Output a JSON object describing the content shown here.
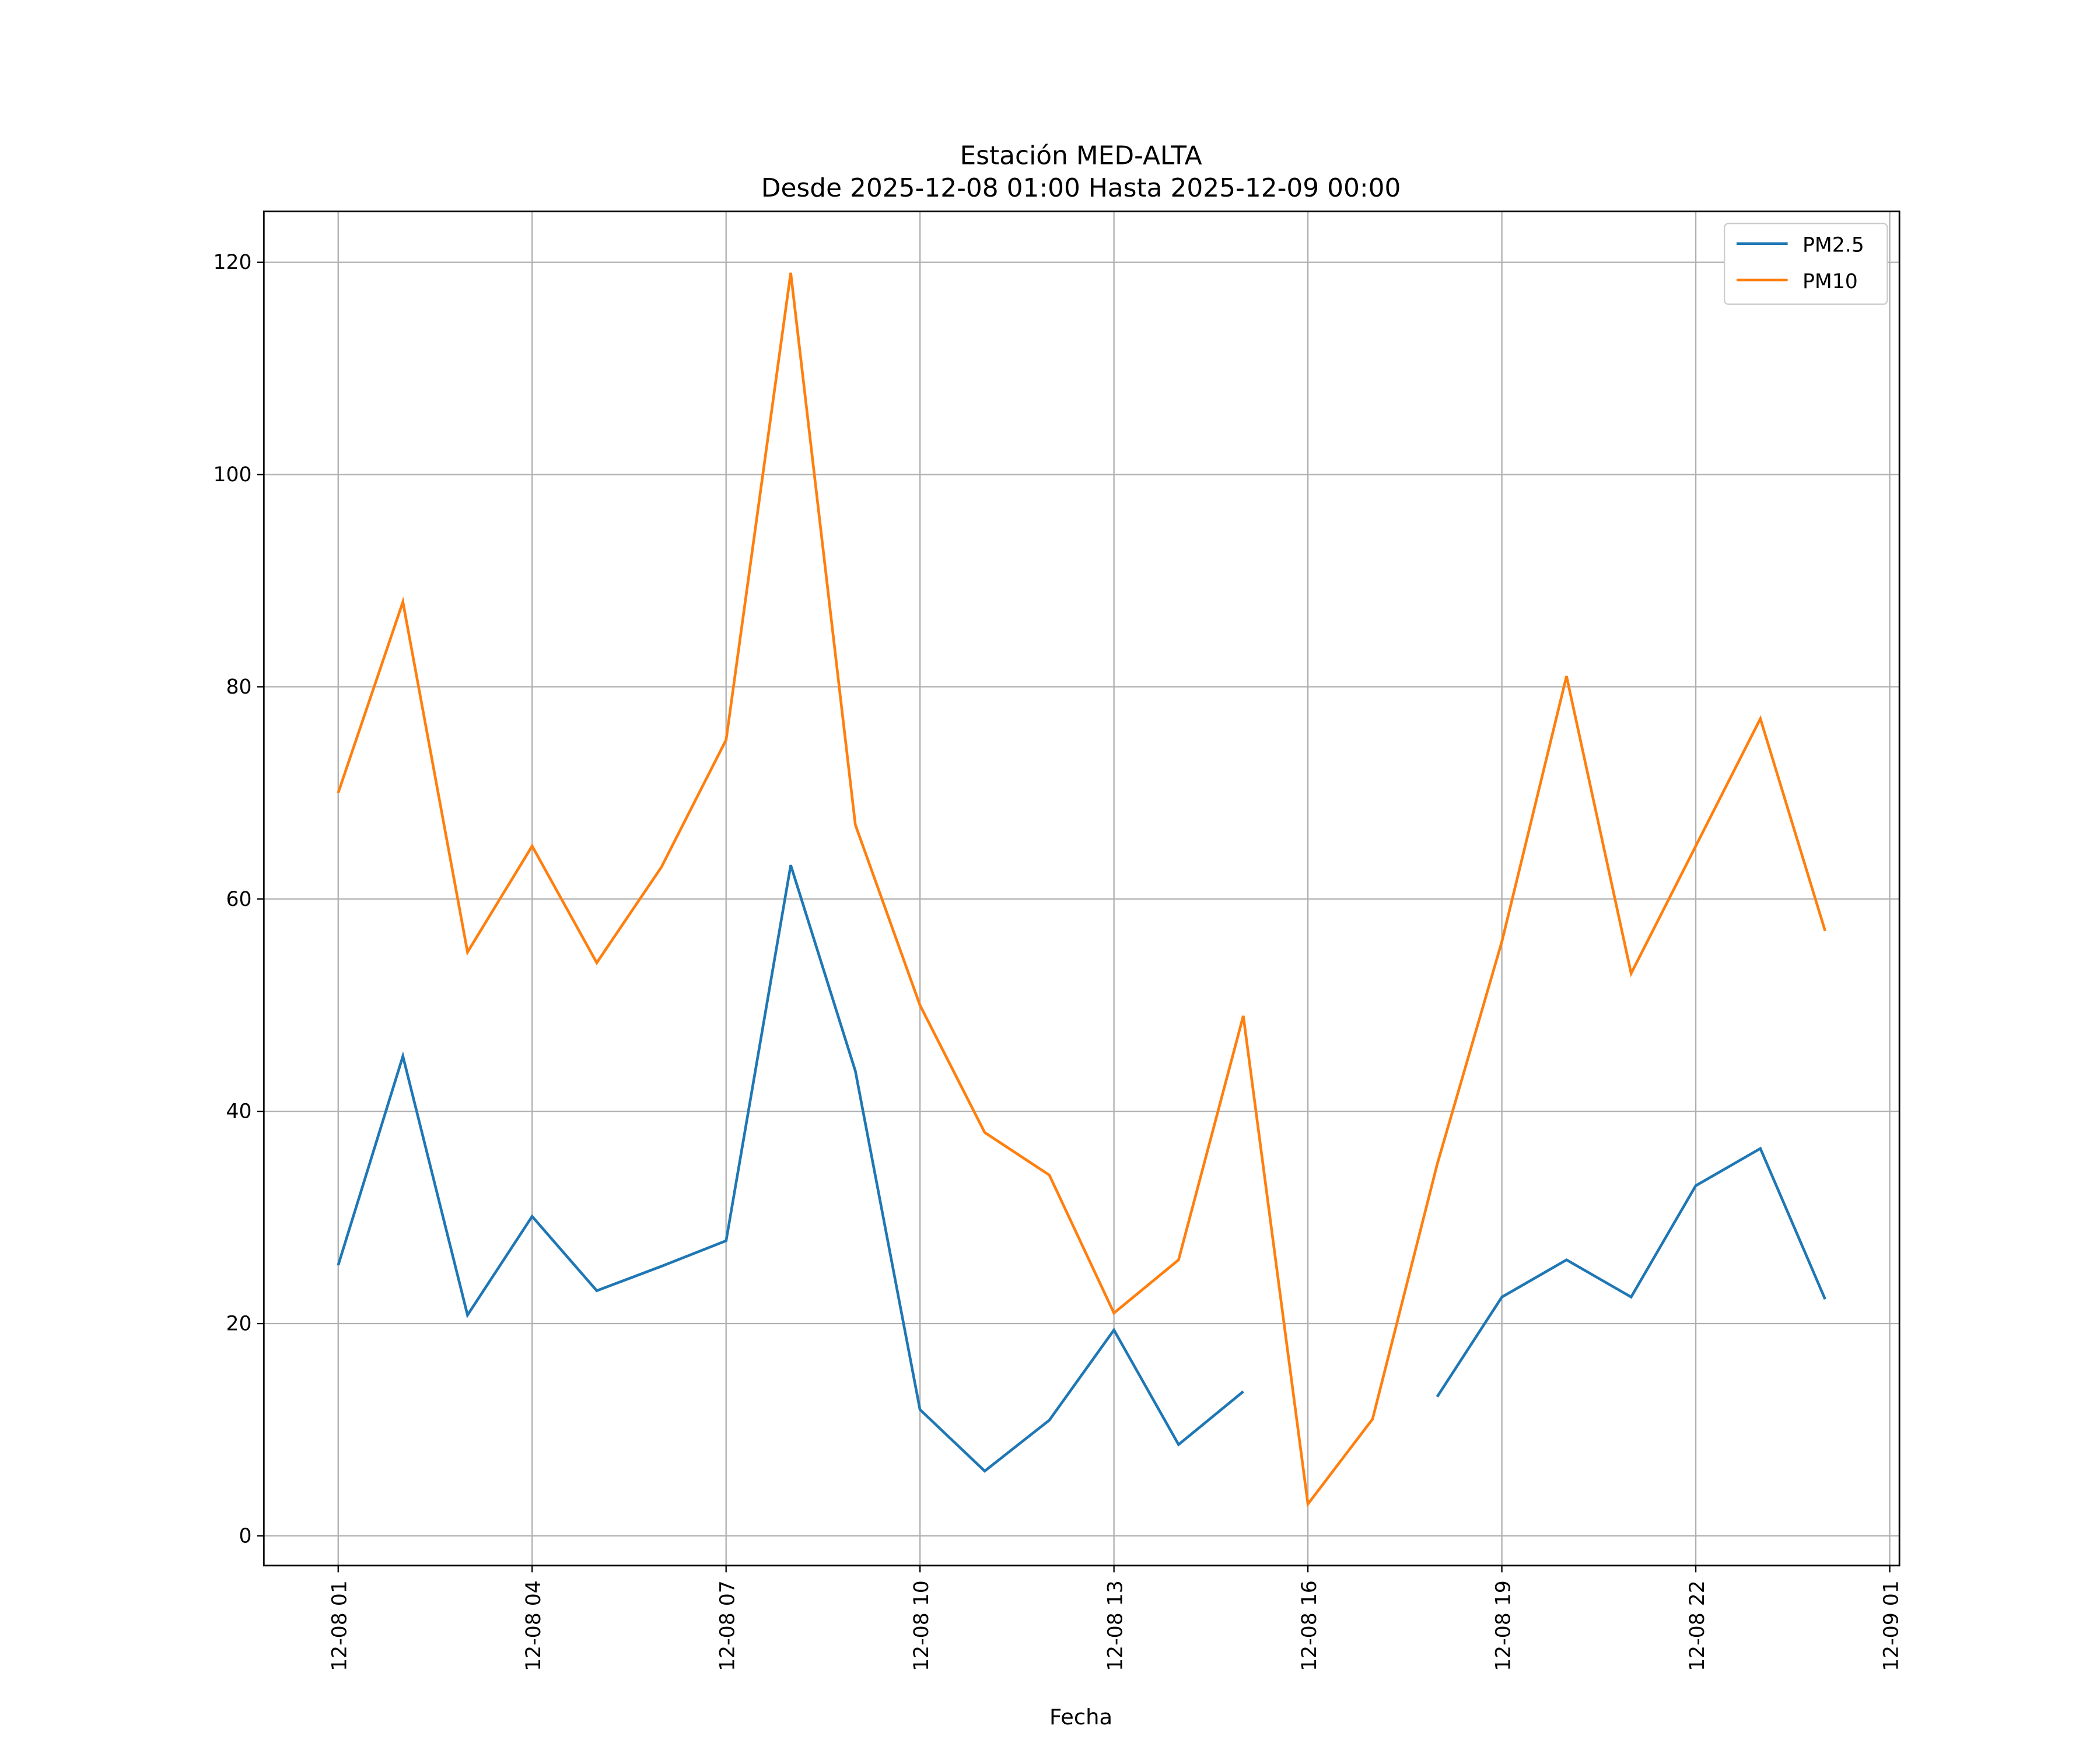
{
  "chart_data": {
    "type": "line",
    "title": "Estación MED-ALTA",
    "subtitle": "Desde 2025-12-08 01:00 Hasta 2025-12-09 00:00",
    "xlabel": "Fecha",
    "ylabel": "",
    "x_hours": [
      1,
      2,
      3,
      4,
      5,
      6,
      7,
      8,
      9,
      10,
      11,
      12,
      13,
      14,
      15,
      16,
      17,
      18,
      19,
      20,
      21,
      22,
      23,
      24
    ],
    "xlim_hours": [
      -0.15,
      25.15
    ],
    "ylim": [
      -2.8,
      124.8
    ],
    "x_ticks": [
      {
        "hour": 1,
        "label": "12-08 01"
      },
      {
        "hour": 4,
        "label": "12-08 04"
      },
      {
        "hour": 7,
        "label": "12-08 07"
      },
      {
        "hour": 10,
        "label": "12-08 10"
      },
      {
        "hour": 13,
        "label": "12-08 13"
      },
      {
        "hour": 16,
        "label": "12-08 16"
      },
      {
        "hour": 19,
        "label": "12-08 19"
      },
      {
        "hour": 22,
        "label": "12-08 22"
      },
      {
        "hour": 25,
        "label": "12-09 01"
      }
    ],
    "y_ticks": [
      0,
      20,
      40,
      60,
      80,
      100,
      120
    ],
    "grid": true,
    "legend_position": "top-right",
    "series": [
      {
        "name": "PM2.5",
        "color": "#1f77b4",
        "values": [
          25.5,
          45.2,
          20.8,
          30.1,
          23.1,
          25.4,
          27.8,
          63.2,
          43.8,
          11.9,
          6.1,
          10.9,
          19.4,
          8.6,
          13.6,
          null,
          null,
          13.1,
          22.5,
          26.0,
          22.5,
          33.0,
          36.5,
          22.3
        ]
      },
      {
        "name": "PM10",
        "color": "#ff7f0e",
        "values": [
          70,
          88,
          55,
          65,
          54,
          63,
          75,
          119,
          67,
          50,
          38,
          34,
          21,
          26,
          49,
          3,
          11,
          35,
          56,
          81,
          53,
          65,
          77,
          57
        ]
      }
    ]
  }
}
